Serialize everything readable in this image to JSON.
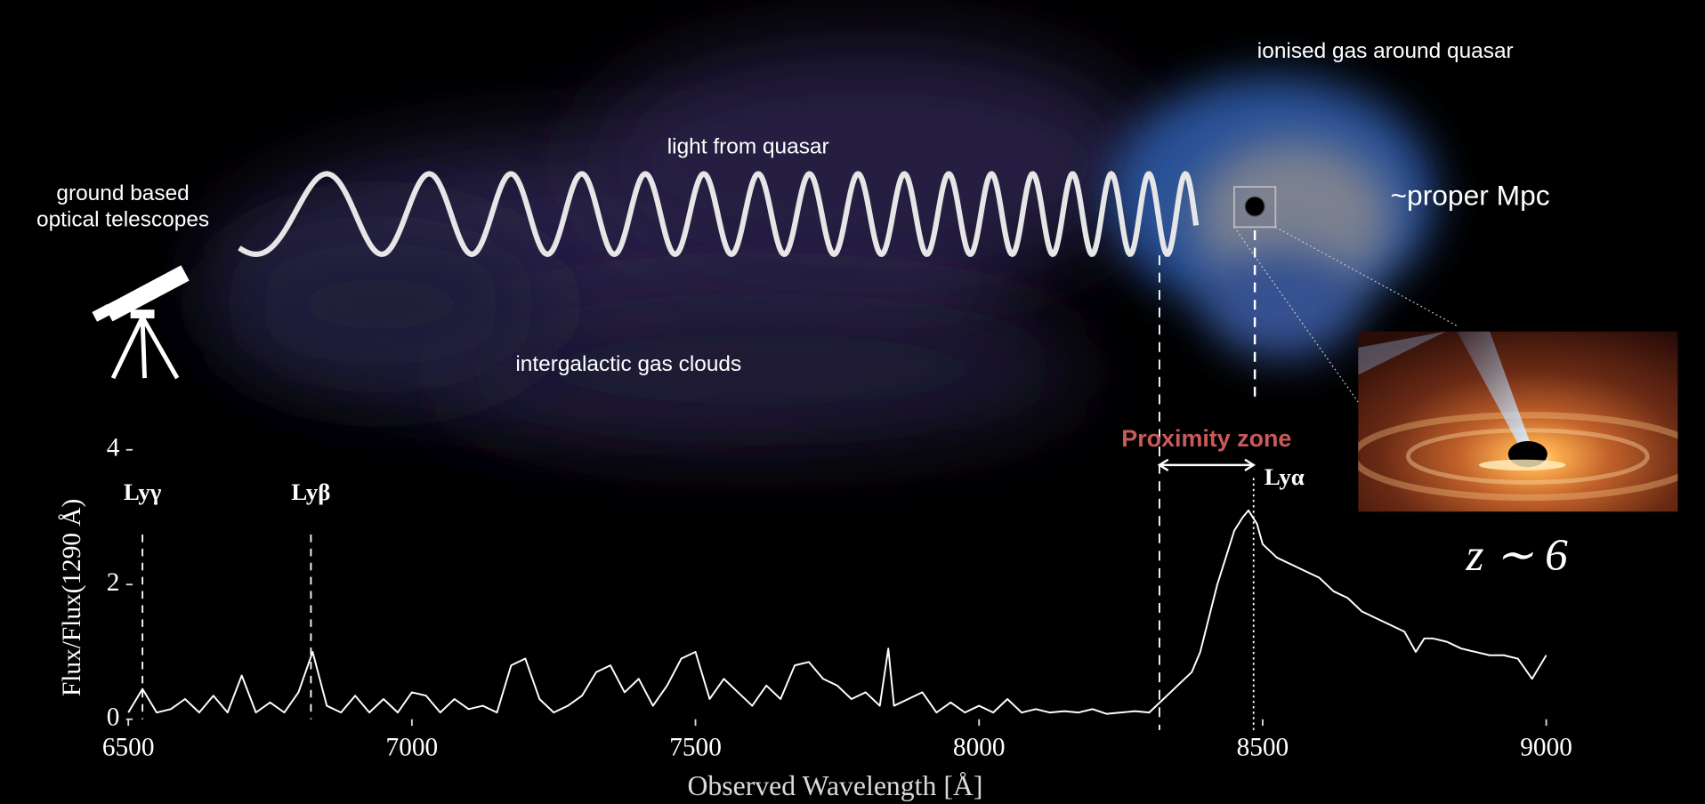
{
  "chart_data": {
    "type": "line",
    "annotations": {
      "telescope": [
        "ground based",
        "optical telescopes"
      ],
      "light": "light from quasar",
      "ionised": "ionised gas around quasar",
      "igm": "intergalactic gas clouds",
      "scale": "~proper Mpc",
      "redshift": "z ∼ 6"
    },
    "xlabel": "Observed Wavelength [Å]",
    "ylabel": "Flux/Flux(1290 Å)",
    "x": [
      6500,
      6525,
      6550,
      6575,
      6600,
      6625,
      6650,
      6675,
      6700,
      6725,
      6750,
      6775,
      6800,
      6825,
      6850,
      6875,
      6900,
      6925,
      6950,
      6975,
      7000,
      7025,
      7050,
      7075,
      7100,
      7125,
      7150,
      7175,
      7200,
      7225,
      7250,
      7275,
      7300,
      7325,
      7350,
      7375,
      7400,
      7425,
      7450,
      7475,
      7500,
      7525,
      7550,
      7575,
      7600,
      7625,
      7650,
      7675,
      7700,
      7725,
      7750,
      7775,
      7800,
      7825,
      7840,
      7850,
      7875,
      7900,
      7925,
      7950,
      7975,
      8000,
      8025,
      8050,
      8075,
      8100,
      8125,
      8150,
      8175,
      8200,
      8225,
      8250,
      8275,
      8300,
      8325,
      8350,
      8375,
      8390,
      8405,
      8420,
      8435,
      8450,
      8465,
      8475,
      8490,
      8500,
      8525,
      8550,
      8575,
      8600,
      8625,
      8650,
      8675,
      8700,
      8725,
      8750,
      8770,
      8785,
      8800,
      8825,
      8850,
      8875,
      8900,
      8925,
      8950,
      8975,
      9000
    ],
    "values": [
      0.1,
      0.45,
      0.1,
      0.15,
      0.3,
      0.1,
      0.35,
      0.1,
      0.65,
      0.1,
      0.25,
      0.1,
      0.4,
      1.0,
      0.2,
      0.1,
      0.35,
      0.1,
      0.3,
      0.1,
      0.4,
      0.35,
      0.1,
      0.3,
      0.15,
      0.2,
      0.1,
      0.8,
      0.9,
      0.3,
      0.1,
      0.2,
      0.35,
      0.7,
      0.8,
      0.4,
      0.6,
      0.2,
      0.5,
      0.9,
      1.0,
      0.3,
      0.6,
      0.4,
      0.2,
      0.5,
      0.3,
      0.8,
      0.85,
      0.6,
      0.5,
      0.3,
      0.4,
      0.2,
      1.05,
      0.2,
      0.3,
      0.4,
      0.1,
      0.25,
      0.1,
      0.2,
      0.1,
      0.3,
      0.1,
      0.15,
      0.1,
      0.12,
      0.1,
      0.15,
      0.08,
      0.1,
      0.12,
      0.1,
      0.3,
      0.5,
      0.7,
      1.0,
      1.5,
      2.0,
      2.4,
      2.8,
      3.0,
      3.1,
      2.9,
      2.6,
      2.4,
      2.3,
      2.2,
      2.1,
      1.9,
      1.8,
      1.6,
      1.5,
      1.4,
      1.3,
      1.0,
      1.2,
      1.2,
      1.15,
      1.05,
      1.0,
      0.95,
      0.95,
      0.9,
      0.6,
      0.95
    ],
    "color": "#ffffff",
    "xlim": [
      6500,
      9000
    ],
    "xticks": [
      6500,
      7000,
      7500,
      8000,
      8500,
      9000
    ],
    "ylim": [
      0,
      4
    ],
    "yticks": [
      0,
      2,
      4
    ],
    "lines": [
      {
        "label": "Lyγ",
        "x": 6525
      },
      {
        "label": "Lyβ",
        "x": 6822
      },
      {
        "label": "Lyα",
        "x": 8484
      }
    ],
    "proximity_zone": {
      "label": "Proximity zone",
      "x": [
        8318,
        8484
      ],
      "color": "#c85a5a"
    }
  }
}
